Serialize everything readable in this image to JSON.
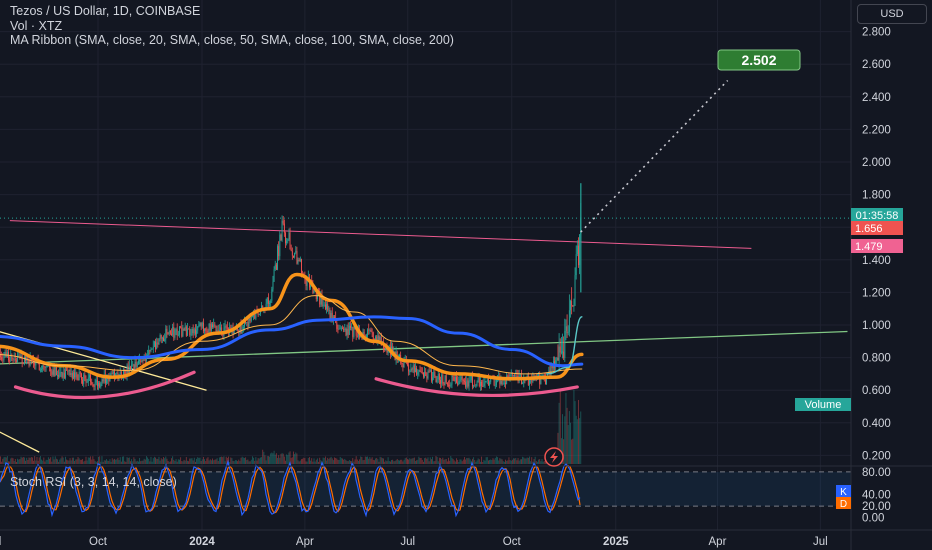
{
  "header": {
    "symbol_line": "Tezos / US Dollar, 1D, COINBASE",
    "volume_line": "Vol · XTZ",
    "ma_line": "MA Ribbon (SMA, close, 20, SMA, close, 50, SMA, close, 100, SMA, close, 200)",
    "currency_button": "USD"
  },
  "colors": {
    "background": "#131722",
    "up": "#26a69a",
    "down": "#ef5350",
    "ma20": "#f7931a",
    "ma50": "#ffb74d",
    "ma100": "#2962ff",
    "ma200": "#5ac8c8",
    "pink": "#ec5b8f",
    "green_line": "#81c784",
    "yellow_line": "#ffeb99",
    "stoch_k": "#2962ff",
    "stoch_d": "#ff6d00"
  },
  "annotations": {
    "target_label": "2.502",
    "countdown_label": "01:35:58",
    "last_price_label": "1.656",
    "level_label": "1.479",
    "volume_badge": "Volume",
    "stoch_title": "Stoch RSI (3, 3, 14, 14, close)",
    "stoch_k_label": "K",
    "stoch_d_label": "D"
  },
  "chart_data": [
    {
      "type": "candlestick",
      "title": "Tezos / US Dollar, 1D, COINBASE",
      "y_ticks": [
        "0.200",
        "0.400",
        "0.600",
        "0.800",
        "1.000",
        "1.200",
        "1.400",
        "1.600",
        "1.800",
        "2.000",
        "2.200",
        "2.400",
        "2.600",
        "2.800"
      ],
      "x_ticks": [
        "Jul",
        "Oct",
        "2024",
        "Apr",
        "Jul",
        "Oct",
        "2025",
        "Apr",
        "Jul"
      ],
      "ylim": [
        0.2,
        2.8
      ],
      "price_path": {
        "x": [
          "2023-07-01",
          "2023-08-01",
          "2023-09-01",
          "2023-10-01",
          "2023-11-01",
          "2023-12-01",
          "2024-01-01",
          "2024-02-01",
          "2024-03-01",
          "2024-03-12",
          "2024-04-01",
          "2024-05-01",
          "2024-06-01",
          "2024-07-01",
          "2024-08-01",
          "2024-09-01",
          "2024-10-01",
          "2024-11-01",
          "2024-11-20",
          "2024-12-02"
        ],
        "y": [
          0.83,
          0.78,
          0.7,
          0.65,
          0.73,
          0.95,
          0.98,
          0.96,
          1.15,
          1.6,
          1.3,
          0.98,
          0.93,
          0.75,
          0.66,
          0.65,
          0.67,
          0.66,
          0.95,
          1.6
        ]
      },
      "series": [
        {
          "name": "MA20",
          "x": [
            "2023-07-01",
            "2023-09-01",
            "2023-10-15",
            "2023-12-01",
            "2024-01-15",
            "2024-03-01",
            "2024-03-25",
            "2024-04-25",
            "2024-06-01",
            "2024-07-01",
            "2024-08-15",
            "2024-10-01",
            "2024-11-10",
            "2024-12-02"
          ],
          "y": [
            0.87,
            0.75,
            0.68,
            0.79,
            0.95,
            1.1,
            1.31,
            1.15,
            0.9,
            0.78,
            0.7,
            0.67,
            0.68,
            0.82
          ]
        },
        {
          "name": "MA50",
          "x": [
            "2023-07-01",
            "2023-09-01",
            "2023-11-01",
            "2024-01-01",
            "2024-03-01",
            "2024-04-10",
            "2024-05-15",
            "2024-06-20",
            "2024-08-15",
            "2024-10-15",
            "2024-12-02"
          ],
          "y": [
            0.82,
            0.75,
            0.72,
            0.9,
            1.0,
            1.18,
            1.08,
            0.9,
            0.75,
            0.7,
            0.73
          ]
        },
        {
          "name": "MA100",
          "x": [
            "2023-07-01",
            "2023-09-01",
            "2023-11-01",
            "2024-01-01",
            "2024-03-01",
            "2024-04-15",
            "2024-06-01",
            "2024-07-01",
            "2024-08-15",
            "2024-10-01",
            "2024-11-15",
            "2024-12-02"
          ],
          "y": [
            0.93,
            0.87,
            0.8,
            0.85,
            0.97,
            1.03,
            1.05,
            1.04,
            0.95,
            0.85,
            0.75,
            0.76
          ]
        },
        {
          "name": "MA200",
          "x": [
            "2024-11-01",
            "2024-11-20",
            "2024-12-02"
          ],
          "y": [
            0.7,
            0.74,
            1.05
          ]
        }
      ],
      "drawings": {
        "resistance_line": {
          "x": [
            "2023-07-15",
            "2025-05-01"
          ],
          "y": [
            1.64,
            1.47
          ]
        },
        "support_line": {
          "x": [
            "2023-07-01",
            "2025-07-25"
          ],
          "y": [
            0.76,
            0.96
          ]
        },
        "yellow_trend_upper": {
          "x": [
            "2023-06-20",
            "2024-01-05"
          ],
          "y": [
            0.99,
            0.6
          ]
        },
        "yellow_trend_lower": {
          "x": [
            "2023-06-20",
            "2023-08-10"
          ],
          "y": [
            0.4,
            0.22
          ]
        },
        "target_projection": {
          "x": [
            "2024-12-01",
            "2025-04-10"
          ],
          "y": [
            1.57,
            2.5
          ]
        },
        "target_value": 2.502,
        "level_value": 1.479,
        "last_price": 1.656,
        "arc_left": {
          "x": [
            "2023-07-20",
            "2023-10-05",
            "2023-12-25"
          ],
          "y": [
            0.62,
            0.56,
            0.71
          ]
        },
        "arc_right": {
          "x": [
            "2024-06-03",
            "2024-08-30",
            "2024-11-28"
          ],
          "y": [
            0.67,
            0.57,
            0.62
          ]
        }
      }
    },
    {
      "type": "line",
      "title": "Stoch RSI (3, 3, 14, 14, close)",
      "y_ticks": [
        "0.00",
        "20.00",
        "40.00",
        "80.00"
      ],
      "ylim": [
        0,
        100
      ],
      "bands": [
        20,
        80
      ],
      "series": [
        {
          "name": "K",
          "last": 35
        },
        {
          "name": "D",
          "last": 22
        }
      ]
    }
  ]
}
